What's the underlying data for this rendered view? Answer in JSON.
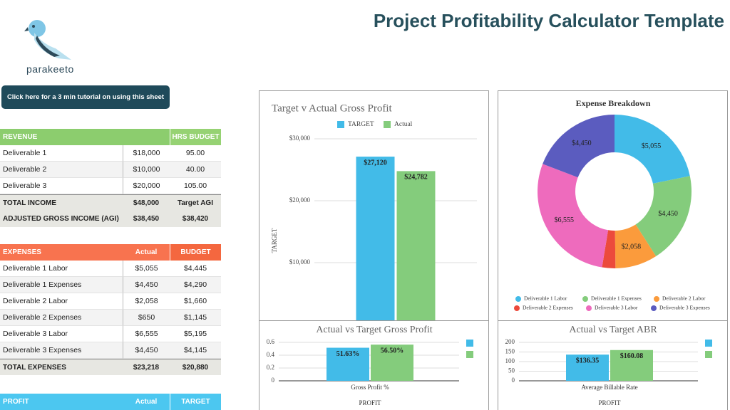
{
  "header": {
    "logo": "parakeeto",
    "title": "Project Profitability Calculator Template"
  },
  "button": "Click here for a 3 min tutorial on using this sheet",
  "revenue": {
    "header": {
      "label": "REVENUE",
      "budget": "HRS BUDGET"
    },
    "rows": [
      [
        "Deliverable 1",
        "$18,000",
        "95.00"
      ],
      [
        "Deliverable 2",
        "$10,000",
        "40.00"
      ],
      [
        "Deliverable 3",
        "$20,000",
        "105.00"
      ]
    ],
    "totals": [
      [
        "TOTAL INCOME",
        "$48,000",
        "Target AGI"
      ],
      [
        "ADJUSTED GROSS INCOME (AGI)",
        "$38,450",
        "$38,420"
      ]
    ]
  },
  "expenses": {
    "header": {
      "label": "EXPENSES",
      "actual": "Actual",
      "budget": "BUDGET"
    },
    "rows": [
      [
        "Deliverable 1 Labor",
        "$5,055",
        "$4,445"
      ],
      [
        "Deliverable 1 Expenses",
        "$4,450",
        "$4,290"
      ],
      [
        "Deliverable 2 Labor",
        "$2,058",
        "$1,660"
      ],
      [
        "Deliverable 2 Expenses",
        "$650",
        "$1,145"
      ],
      [
        "Deliverable 3 Labor",
        "$6,555",
        "$5,195"
      ],
      [
        "Deliverable 3 Expenses",
        "$4,450",
        "$4,145"
      ]
    ],
    "totals": [
      [
        "TOTAL EXPENSES",
        "$23,218",
        "$20,880"
      ]
    ]
  },
  "profit": {
    "header": {
      "label": "PROFIT",
      "actual": "Actual",
      "budget": "TARGET"
    },
    "rows": [],
    "totals": []
  },
  "chart_data": [
    {
      "type": "bar",
      "title": "Target v Actual Gross Profit",
      "ylabel": "TARGET",
      "categories": [
        null
      ],
      "series": [
        {
          "name": "TARGET",
          "color": "#42bbe8",
          "values": [
            27120
          ],
          "value_labels": [
            "$27,120"
          ]
        },
        {
          "name": "Actual",
          "color": "#84cc7c",
          "values": [
            24782
          ],
          "value_labels": [
            "$24,782"
          ]
        }
      ],
      "ylim": [
        0,
        31000
      ],
      "yticks": [
        {
          "value": 10000,
          "label": "$10,000"
        },
        {
          "value": 20000,
          "label": "$20,000"
        },
        {
          "value": 30000,
          "label": "$30,000"
        }
      ],
      "grid": true
    },
    {
      "type": "donut",
      "title": "Expense Breakdown",
      "categories": [
        "Deliverable 1 Labor",
        "Deliverable 1 Expenses",
        "Deliverable 2 Labor",
        "Deliverable 2 Expenses",
        "Deliverable 3 Labor",
        "Deliverable 3 Expenses"
      ],
      "values": [
        5055,
        4450,
        2058,
        650,
        6555,
        4450
      ],
      "value_labels": [
        "$5,055",
        "$4,450",
        "$2,058",
        null,
        "$6,555",
        "$4,450"
      ],
      "colors": [
        "#42bbe8",
        "#84cc7c",
        "#fb9b3c",
        "#ec4a3c",
        "#ee6bbd",
        "#5b5cbf"
      ]
    },
    {
      "type": "bar",
      "title": "Actual vs Target Gross Profit",
      "xlabel": "PROFIT",
      "categories": [
        "Gross Profit %"
      ],
      "series": [
        {
          "color": "#42bbe8",
          "values": [
            0.5163
          ],
          "value_labels": [
            "51.63%"
          ]
        },
        {
          "color": "#84cc7c",
          "values": [
            0.565
          ],
          "value_labels": [
            "56.50%"
          ]
        }
      ],
      "ylim": [
        0,
        0.6
      ],
      "yticks": [
        0,
        0.2,
        0.4,
        0.6
      ],
      "grid": true
    },
    {
      "type": "bar",
      "title": "Actual vs Target ABR",
      "xlabel": "PROFIT",
      "categories": [
        "Average Billable Rate"
      ],
      "series": [
        {
          "color": "#42bbe8",
          "values": [
            136.35
          ],
          "value_labels": [
            "$136.35"
          ]
        },
        {
          "color": "#84cc7c",
          "values": [
            160.08
          ],
          "value_labels": [
            "$160.08"
          ]
        }
      ],
      "ylim": [
        0,
        200
      ],
      "yticks": [
        0,
        50,
        100,
        150,
        200
      ],
      "grid": true
    }
  ]
}
